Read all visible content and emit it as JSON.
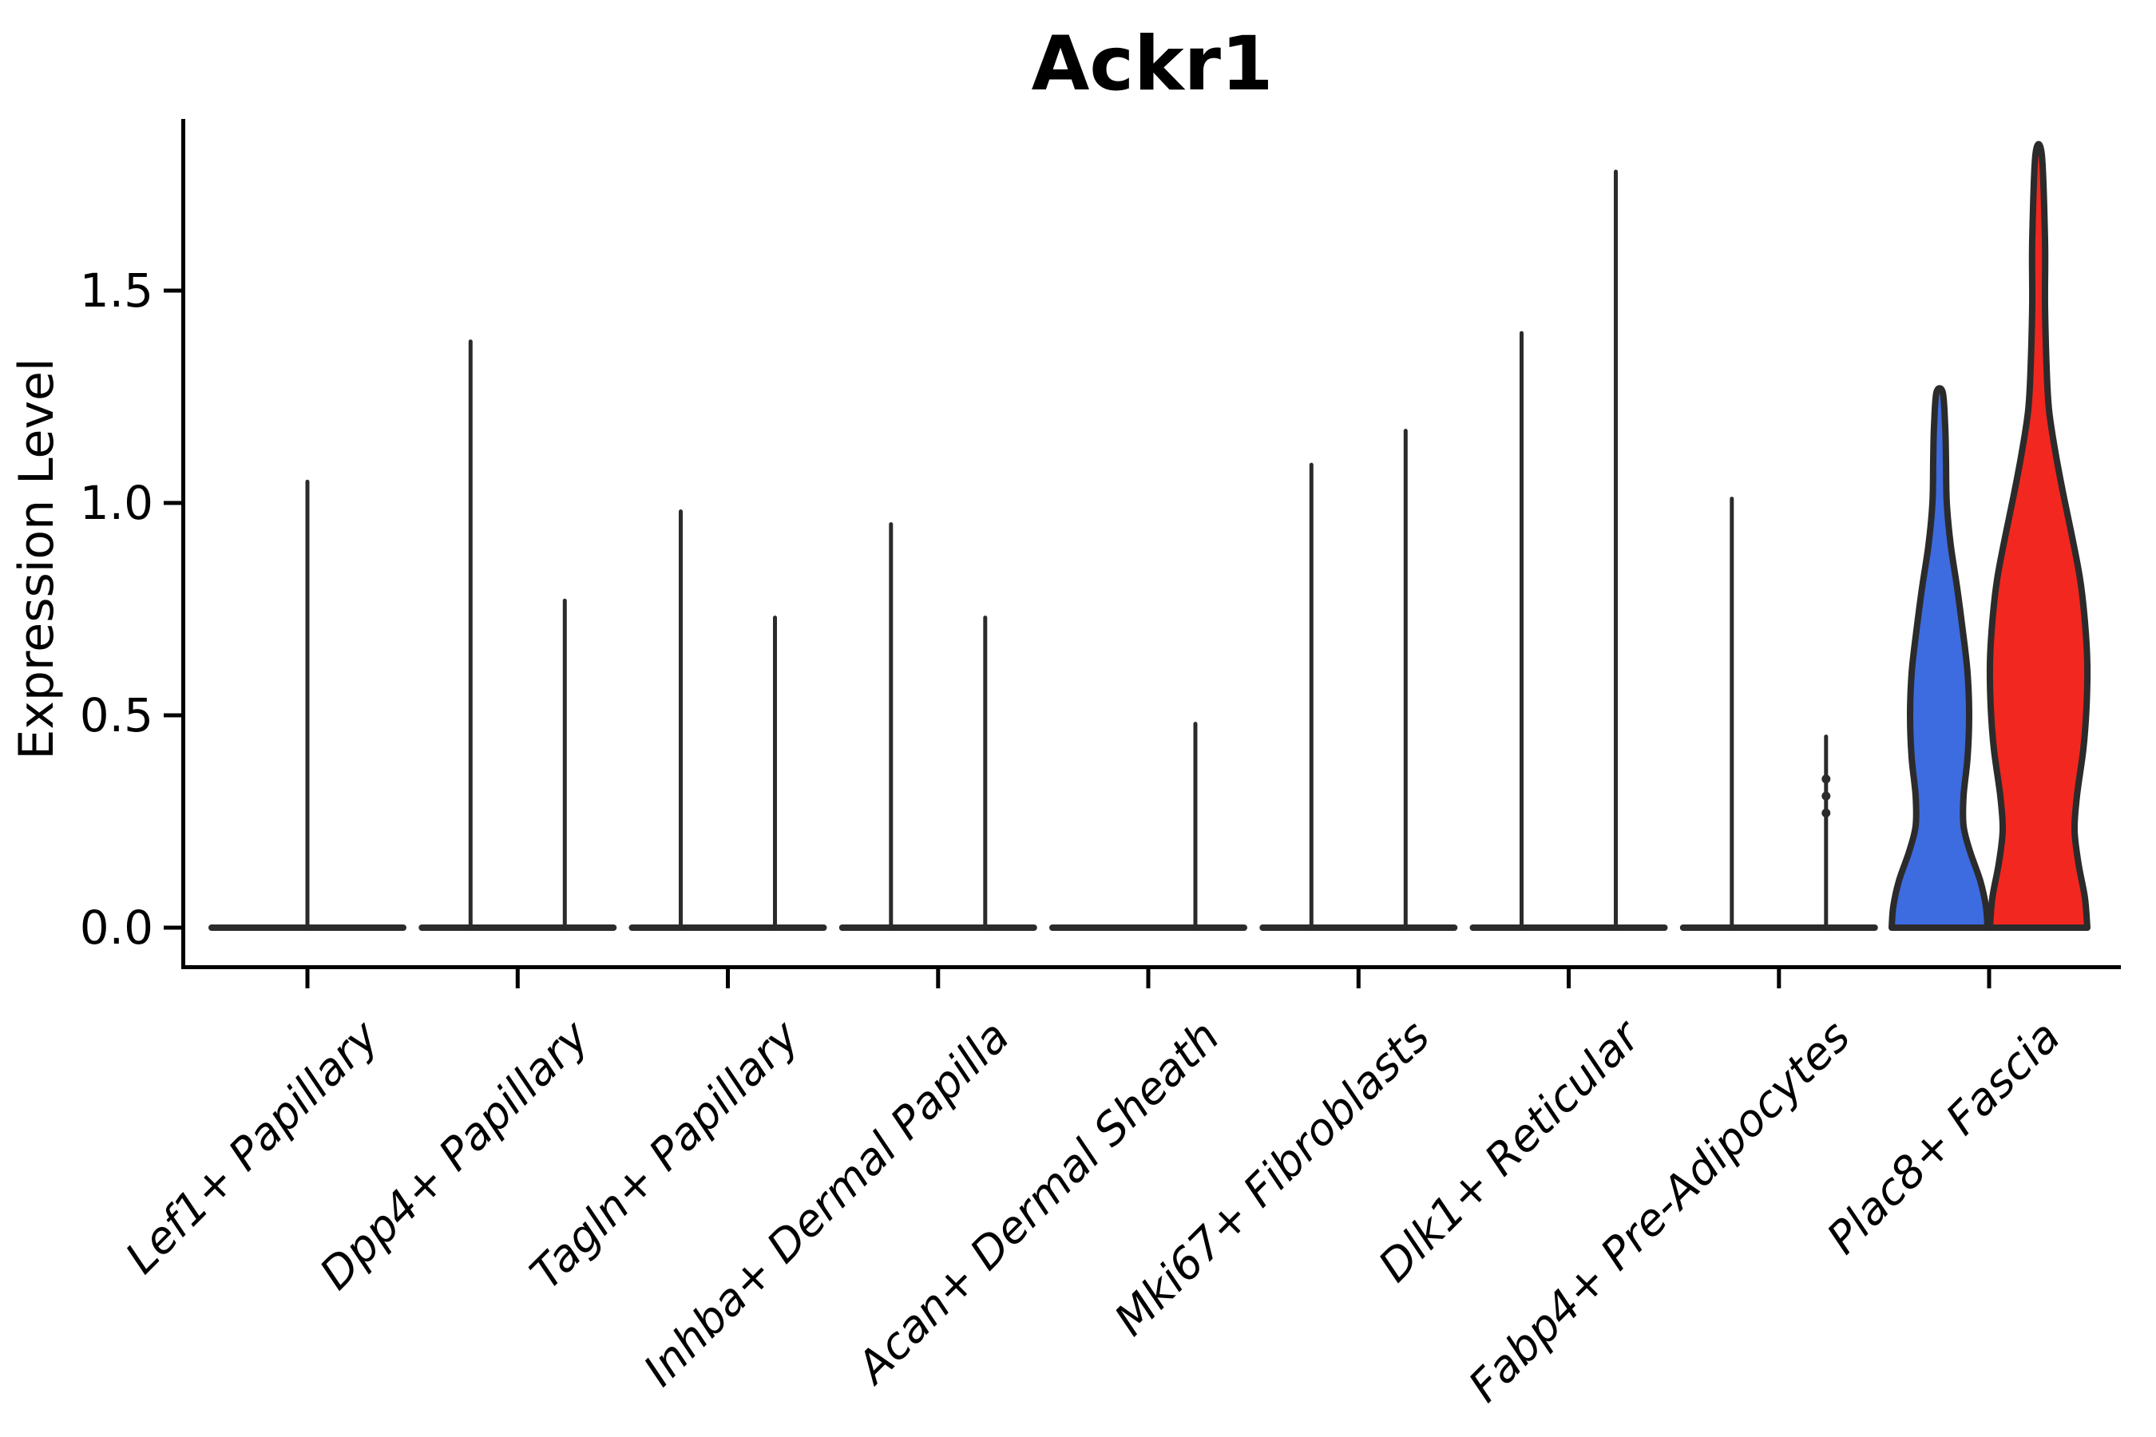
{
  "title": "Ackr1",
  "y_axis": {
    "label": "Expression Level",
    "tick_labels": [
      "0.0",
      "0.5",
      "1.0",
      "1.5"
    ]
  },
  "colors": {
    "group_blue": "#3d6be0",
    "group_red": "#f2271f",
    "violin_line": "#2b2b2b",
    "axis": "#000000",
    "background": "#ffffff"
  },
  "chart_data": {
    "type": "violin",
    "title": "Ackr1",
    "xlabel": "",
    "ylabel": "Expression Level",
    "ylim": [
      -0.09,
      1.91
    ],
    "yticks": [
      0,
      0.5,
      1,
      1.5
    ],
    "grid": false,
    "legend": "none",
    "description": "Split violin plot of Ackr1 expression per fibroblast subtype; most violins collapse to a zero baseline with thin density spikes; Plac8+ Fascia shows two filled violins (blue and red groups).",
    "categories": [
      {
        "label": "Lef1+ Papillary",
        "violins": [
          {
            "side": "center",
            "shape": "spike",
            "max_expression": 1.05
          }
        ]
      },
      {
        "label": "Dpp4+ Papillary",
        "violins": [
          {
            "side": "left",
            "shape": "spike",
            "max_expression": 1.38
          },
          {
            "side": "right",
            "shape": "spike",
            "max_expression": 0.77
          }
        ]
      },
      {
        "label": "Tagln+ Papillary",
        "violins": [
          {
            "side": "left",
            "shape": "spike",
            "max_expression": 0.98
          },
          {
            "side": "right",
            "shape": "spike",
            "max_expression": 0.73
          }
        ]
      },
      {
        "label": "Inhba+ Dermal Papilla",
        "violins": [
          {
            "side": "left",
            "shape": "spike",
            "max_expression": 0.95
          },
          {
            "side": "right",
            "shape": "spike",
            "max_expression": 0.73
          }
        ]
      },
      {
        "label": "Acan+ Dermal Sheath",
        "violins": [
          {
            "side": "right",
            "shape": "spike",
            "max_expression": 0.48
          }
        ]
      },
      {
        "label": "Mki67+ Fibroblasts",
        "violins": [
          {
            "side": "left",
            "shape": "spike",
            "max_expression": 1.09
          },
          {
            "side": "right",
            "shape": "spike",
            "max_expression": 1.17
          }
        ]
      },
      {
        "label": "Dlk1+ Reticular",
        "violins": [
          {
            "side": "left",
            "shape": "spike",
            "max_expression": 1.4
          },
          {
            "side": "right",
            "shape": "spike",
            "max_expression": 1.78
          }
        ]
      },
      {
        "label": "Fabp4+ Pre-Adipocytes",
        "violins": [
          {
            "side": "left",
            "shape": "spike",
            "max_expression": 1.01
          },
          {
            "side": "right",
            "shape": "spike",
            "max_expression": 0.45,
            "point_values": [
              0.35,
              0.31,
              0.27
            ]
          }
        ]
      },
      {
        "label": "Plac8+ Fascia",
        "violins": [
          {
            "side": "left",
            "shape": "violin",
            "max_expression": 1.26,
            "fill": "#3d6be0",
            "profile": [
              [
                0,
                60
              ],
              [
                0.05,
                58
              ],
              [
                0.11,
                51
              ],
              [
                0.18,
                38
              ],
              [
                0.24,
                30
              ],
              [
                0.31,
                30
              ],
              [
                0.4,
                35
              ],
              [
                0.5,
                37
              ],
              [
                0.6,
                35
              ],
              [
                0.7,
                29
              ],
              [
                0.8,
                22
              ],
              [
                0.9,
                14
              ],
              [
                1.0,
                9
              ],
              [
                1.1,
                8
              ],
              [
                1.18,
                7
              ],
              [
                1.26,
                4
              ]
            ]
          },
          {
            "side": "right",
            "shape": "violin",
            "max_expression": 1.82,
            "fill": "#f2271f",
            "profile": [
              [
                0,
                61
              ],
              [
                0.07,
                58
              ],
              [
                0.15,
                50
              ],
              [
                0.23,
                45
              ],
              [
                0.31,
                48
              ],
              [
                0.42,
                56
              ],
              [
                0.52,
                60
              ],
              [
                0.62,
                61
              ],
              [
                0.72,
                58
              ],
              [
                0.82,
                52
              ],
              [
                0.92,
                42
              ],
              [
                1.02,
                31
              ],
              [
                1.12,
                21
              ],
              [
                1.22,
                13
              ],
              [
                1.32,
                10
              ],
              [
                1.47,
                8
              ],
              [
                1.62,
                8
              ],
              [
                1.82,
                4
              ]
            ]
          }
        ]
      }
    ]
  }
}
